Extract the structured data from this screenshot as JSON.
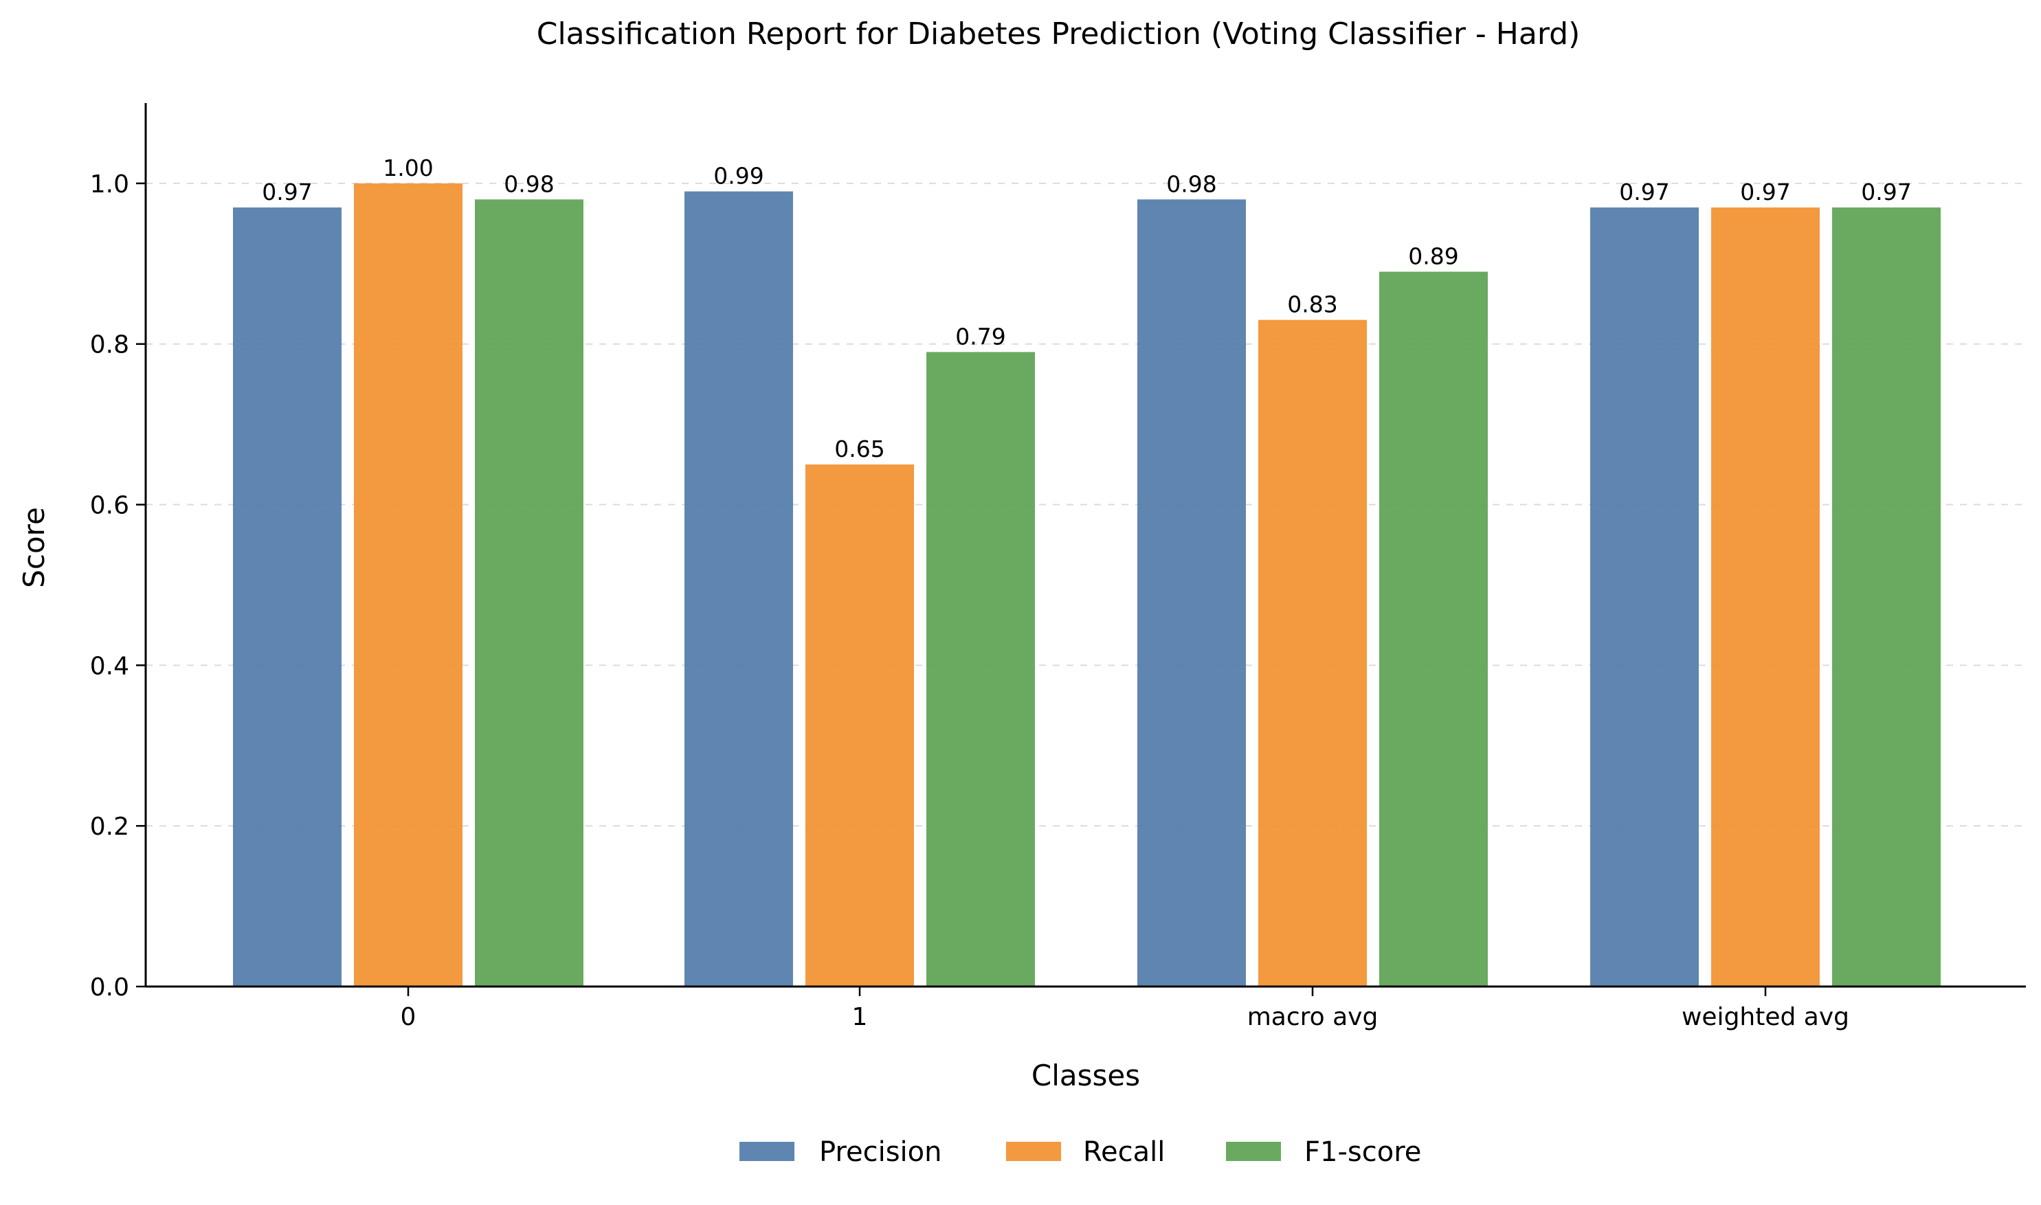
{
  "chart_data": {
    "type": "bar",
    "title": "Classification Report for Diabetes Prediction (Voting Classifier - Hard)",
    "xlabel": "Classes",
    "ylabel": "Score",
    "categories": [
      "0",
      "1",
      "macro avg",
      "weighted avg"
    ],
    "series": [
      {
        "name": "Precision",
        "color": "#4e79a7",
        "values": [
          0.97,
          0.99,
          0.98,
          0.97
        ],
        "labels": [
          "0.97",
          "0.99",
          "0.98",
          "0.97"
        ]
      },
      {
        "name": "Recall",
        "color": "#f28e2b",
        "values": [
          1.0,
          0.65,
          0.83,
          0.97
        ],
        "labels": [
          "1.00",
          "0.65",
          "0.83",
          "0.97"
        ]
      },
      {
        "name": "F1-score",
        "color": "#59a14f",
        "values": [
          0.98,
          0.79,
          0.89,
          0.97
        ],
        "labels": [
          "0.98",
          "0.79",
          "0.89",
          "0.97"
        ]
      }
    ],
    "ylim": [
      0,
      1.1
    ],
    "yticks": [
      0.0,
      0.2,
      0.4,
      0.6,
      0.8,
      1.0
    ],
    "ytick_labels": [
      "0.0",
      "0.2",
      "0.4",
      "0.6",
      "0.8",
      "1.0"
    ],
    "grid": "horizontal dashed",
    "legend_position": "bottom-center"
  }
}
